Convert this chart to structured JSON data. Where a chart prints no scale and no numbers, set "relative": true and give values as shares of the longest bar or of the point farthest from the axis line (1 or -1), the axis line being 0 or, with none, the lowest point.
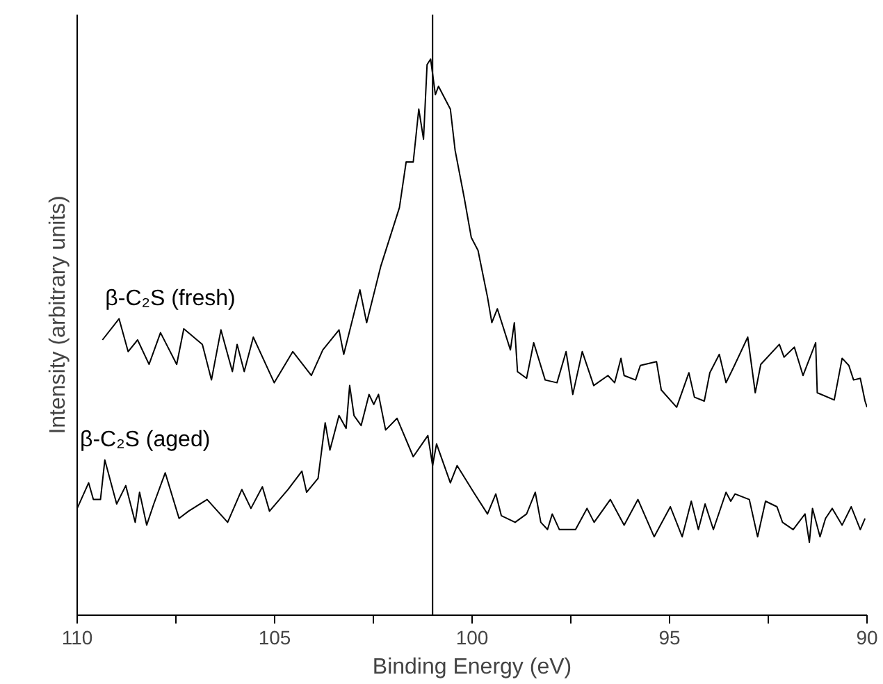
{
  "chart_data": {
    "type": "line",
    "xlabel": "Binding Energy (eV)",
    "ylabel": "Intensity (arbitrary units)",
    "relative": true,
    "grid": false,
    "legend": false,
    "tick_labels": "x",
    "marker": "none",
    "line_style": "solid",
    "xlim": [
      110,
      90
    ],
    "xticks": [
      110,
      {
        "value": 107.5,
        "label": null
      },
      105,
      {
        "value": 102.5,
        "label": null
      },
      100,
      {
        "value": 97.5,
        "label": null
      },
      95,
      {
        "value": 92.5,
        "label": null
      },
      90
    ],
    "ref_lines": [
      {
        "axis": "x",
        "value": 101.0,
        "label": null,
        "color": "#000000"
      }
    ],
    "series": [
      {
        "name": "β-C₂S (fresh)",
        "color": "#000000",
        "x": [
          109.36,
          108.94,
          108.71,
          108.47,
          108.18,
          107.89,
          107.48,
          107.3,
          106.83,
          106.6,
          106.36,
          106.07,
          105.95,
          105.77,
          105.54,
          105.01,
          104.54,
          104.07,
          103.78,
          103.37,
          103.25,
          102.84,
          102.67,
          102.31,
          101.84,
          101.67,
          101.49,
          101.35,
          101.23,
          101.14,
          101.05,
          100.93,
          100.85,
          100.55,
          100.43,
          100.2,
          100.02,
          99.85,
          99.61,
          99.5,
          99.36,
          99.03,
          98.93,
          98.85,
          98.62,
          98.44,
          98.15,
          97.85,
          97.62,
          97.45,
          97.21,
          96.92,
          96.56,
          96.39,
          96.23,
          96.15,
          95.86,
          95.74,
          95.33,
          95.21,
          94.82,
          94.51,
          94.37,
          94.12,
          93.98,
          93.74,
          93.57,
          93.39,
          93.02,
          92.83,
          92.69,
          92.22,
          92.1,
          91.84,
          91.62,
          91.3,
          91.26,
          90.83,
          90.63,
          90.46,
          90.34,
          90.17,
          90.05,
          90.0
        ],
        "values": [
          0.495,
          0.533,
          0.474,
          0.495,
          0.451,
          0.508,
          0.451,
          0.515,
          0.487,
          0.423,
          0.513,
          0.438,
          0.487,
          0.438,
          0.5,
          0.418,
          0.474,
          0.431,
          0.477,
          0.513,
          0.469,
          0.585,
          0.526,
          0.628,
          0.733,
          0.815,
          0.815,
          0.91,
          0.856,
          0.99,
          1.0,
          0.936,
          0.951,
          0.91,
          0.836,
          0.751,
          0.679,
          0.656,
          0.572,
          0.526,
          0.551,
          0.477,
          0.526,
          0.438,
          0.426,
          0.49,
          0.423,
          0.418,
          0.474,
          0.397,
          0.474,
          0.413,
          0.431,
          0.418,
          0.462,
          0.431,
          0.423,
          0.449,
          0.456,
          0.405,
          0.374,
          0.436,
          0.392,
          0.385,
          0.436,
          0.469,
          0.418,
          0.444,
          0.5,
          0.4,
          0.451,
          0.487,
          0.464,
          0.482,
          0.431,
          0.49,
          0.4,
          0.387,
          0.462,
          0.449,
          0.423,
          0.426,
          0.385,
          0.374
        ]
      },
      {
        "name": "β-C₂S (aged)",
        "color": "#000000",
        "x": [
          110.0,
          109.71,
          109.59,
          109.41,
          109.3,
          109.0,
          108.77,
          108.53,
          108.42,
          108.24,
          108.06,
          107.77,
          107.42,
          107.18,
          106.71,
          106.19,
          105.83,
          105.6,
          105.31,
          105.13,
          104.66,
          104.31,
          104.19,
          103.9,
          103.72,
          103.6,
          103.37,
          103.19,
          103.1,
          102.99,
          102.81,
          102.61,
          102.49,
          102.37,
          102.19,
          101.9,
          101.49,
          101.12,
          101.0,
          100.9,
          100.55,
          100.38,
          99.96,
          99.61,
          99.4,
          99.26,
          98.91,
          98.62,
          98.4,
          98.26,
          98.09,
          97.97,
          97.79,
          97.38,
          97.09,
          96.91,
          96.5,
          96.15,
          95.8,
          95.39,
          94.98,
          94.68,
          94.45,
          94.27,
          94.1,
          93.89,
          93.57,
          93.45,
          93.34,
          92.98,
          92.77,
          92.57,
          92.28,
          92.14,
          91.87,
          91.57,
          91.46,
          91.38,
          91.19,
          91.05,
          90.88,
          90.63,
          90.4,
          90.17,
          90.05
        ],
        "values": [
          0.192,
          0.238,
          0.208,
          0.208,
          0.279,
          0.2,
          0.233,
          0.167,
          0.221,
          0.162,
          0.2,
          0.256,
          0.174,
          0.187,
          0.208,
          0.167,
          0.226,
          0.192,
          0.231,
          0.187,
          0.226,
          0.259,
          0.221,
          0.246,
          0.346,
          0.297,
          0.359,
          0.336,
          0.413,
          0.359,
          0.341,
          0.397,
          0.379,
          0.397,
          0.333,
          0.354,
          0.285,
          0.323,
          0.269,
          0.308,
          0.238,
          0.269,
          0.221,
          0.182,
          0.218,
          0.179,
          0.167,
          0.182,
          0.221,
          0.167,
          0.154,
          0.182,
          0.154,
          0.154,
          0.192,
          0.167,
          0.208,
          0.162,
          0.208,
          0.141,
          0.195,
          0.141,
          0.205,
          0.154,
          0.2,
          0.154,
          0.221,
          0.205,
          0.218,
          0.208,
          0.141,
          0.205,
          0.195,
          0.167,
          0.154,
          0.182,
          0.131,
          0.192,
          0.141,
          0.174,
          0.192,
          0.162,
          0.195,
          0.154,
          0.174
        ]
      }
    ]
  }
}
